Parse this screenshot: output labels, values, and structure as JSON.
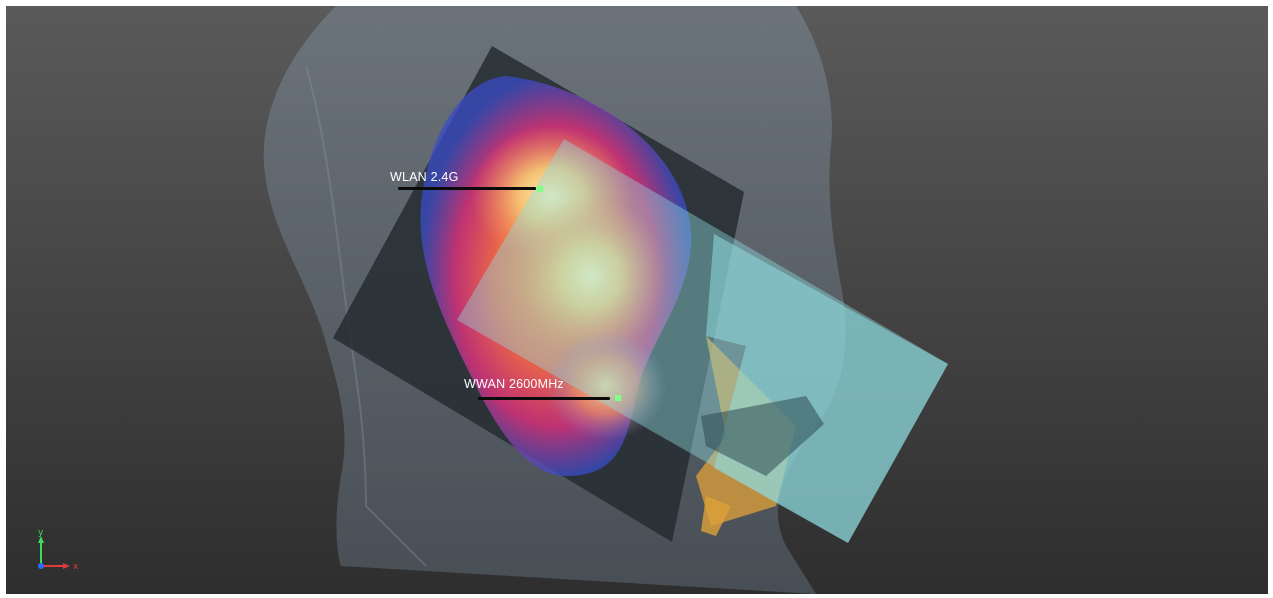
{
  "viewport": {
    "background_top": "#5a5a5a",
    "background_bottom": "#2e2e2e"
  },
  "probes": [
    {
      "id": "wlan",
      "label": "WLAN 2.4G",
      "marker_color": "#7dff8a"
    },
    {
      "id": "wwan",
      "label": "WWAN 2600MHz",
      "marker_color": "#7dff8a"
    }
  ],
  "axes": {
    "y_label": "y",
    "x_label": "x",
    "y_color": "#3ddc5a",
    "x_color": "#e23a3a",
    "z_color": "#2a6cff"
  },
  "colors": {
    "head": "#6f7f8c",
    "board": "#2b3338",
    "panel": "#8fdde0",
    "orange_part": "#e0a13a",
    "heat_low": "#3a4cc8",
    "heat_mid": "#e0407a",
    "heat_high": "#fff3a0"
  }
}
